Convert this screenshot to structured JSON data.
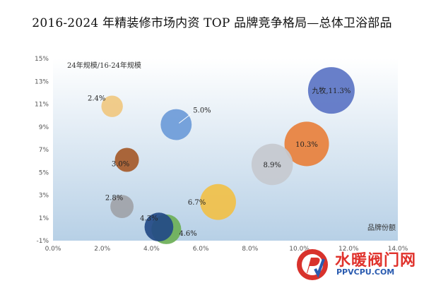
{
  "page": {
    "title": "2016-2024 年精装修市场内资 TOP 品牌竞争格局—总体卫浴部品"
  },
  "watermark": {
    "text_cn": "水暖阀门网",
    "url": "PPVCPU.COM"
  },
  "chart_data": {
    "type": "scatter",
    "title": "2016-2024 年精装修市场内资 TOP 品牌竞争格局—总体卫浴部品",
    "ylabel": "24年规模/16-24年规模",
    "xlabel": "品牌份额",
    "xlim": [
      0,
      14
    ],
    "ylim": [
      -1,
      15
    ],
    "x_ticks": [
      "0.0%",
      "2.0%",
      "4.0%",
      "6.0%",
      "8.0%",
      "10.0%",
      "12.0%",
      "14.0%"
    ],
    "y_ticks": [
      "-1%",
      "1%",
      "3%",
      "5%",
      "7%",
      "9%",
      "11%",
      "13%",
      "15%"
    ],
    "grid": false,
    "bubbles": [
      {
        "label": "九牧,11.3%",
        "x": 11.3,
        "y": 12.2,
        "size": 11.3,
        "color": "#5b74c4"
      },
      {
        "label": "10.3%",
        "x": 10.3,
        "y": 7.5,
        "size": 10.3,
        "color": "#e8803c"
      },
      {
        "label": "8.9%",
        "x": 8.9,
        "y": 5.7,
        "size": 8.9,
        "color": "#c5c9cf"
      },
      {
        "label": "6.7%",
        "x": 6.7,
        "y": 2.4,
        "size": 6.7,
        "color": "#f1c048"
      },
      {
        "label": "5.0%",
        "x": 5.0,
        "y": 9.2,
        "size": 5.0,
        "color": "#6c9bd8"
      },
      {
        "label": "4.6%",
        "x": 4.6,
        "y": 0.0,
        "size": 4.6,
        "color": "#6daf57"
      },
      {
        "label": "4.3%",
        "x": 4.3,
        "y": 0.2,
        "size": 4.3,
        "color": "#234a86"
      },
      {
        "label": "3.0%",
        "x": 3.0,
        "y": 6.1,
        "size": 3.0,
        "color": "#a55a2a"
      },
      {
        "label": "2.8%",
        "x": 2.8,
        "y": 2.0,
        "size": 2.8,
        "color": "#9fa3a8"
      },
      {
        "label": "2.4%",
        "x": 2.4,
        "y": 10.8,
        "size": 2.4,
        "color": "#f0c880"
      }
    ]
  }
}
